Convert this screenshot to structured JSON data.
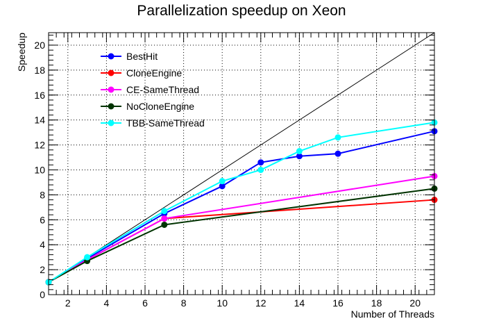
{
  "chart_data": {
    "type": "line",
    "title": "Parallelization speedup on Xeon",
    "xlabel": "Number of Threads",
    "ylabel": "Speedup",
    "xlim": [
      1,
      21
    ],
    "ylim": [
      0,
      21
    ],
    "xticks": [
      2,
      4,
      6,
      8,
      10,
      12,
      14,
      16,
      18,
      20
    ],
    "yticks": [
      0,
      2,
      4,
      6,
      8,
      10,
      12,
      14,
      16,
      18,
      20
    ],
    "grid": true,
    "legend_position": "top-left",
    "reference_line": {
      "x": [
        1,
        21
      ],
      "y": [
        1,
        21
      ],
      "color": "#000000"
    },
    "series": [
      {
        "name": "BestHit",
        "color": "#0000ff",
        "points": [
          [
            1,
            1.0
          ],
          [
            3,
            2.9
          ],
          [
            7,
            6.5
          ],
          [
            10,
            8.7
          ],
          [
            12,
            10.6
          ],
          [
            14,
            11.1
          ],
          [
            16,
            11.3
          ],
          [
            21,
            13.1
          ]
        ]
      },
      {
        "name": "CloneEngine",
        "color": "#ff0000",
        "points": [
          [
            1,
            1.0
          ],
          [
            3,
            2.8
          ],
          [
            7,
            6.1
          ],
          [
            21,
            7.6
          ]
        ]
      },
      {
        "name": "CE-SameThread",
        "color": "#ff00ff",
        "points": [
          [
            1,
            1.0
          ],
          [
            3,
            2.8
          ],
          [
            7,
            6.1
          ],
          [
            21,
            9.5
          ]
        ]
      },
      {
        "name": "NoCloneEngine",
        "color": "#003300",
        "points": [
          [
            1,
            1.0
          ],
          [
            3,
            2.7
          ],
          [
            7,
            5.6
          ],
          [
            21,
            8.5
          ]
        ]
      },
      {
        "name": "TBB-SameThread",
        "color": "#00ffff",
        "points": [
          [
            1,
            1.0
          ],
          [
            3,
            3.0
          ],
          [
            7,
            6.7
          ],
          [
            10,
            9.1
          ],
          [
            12,
            10.0
          ],
          [
            14,
            11.5
          ],
          [
            16,
            12.6
          ],
          [
            21,
            13.8
          ]
        ]
      }
    ]
  }
}
